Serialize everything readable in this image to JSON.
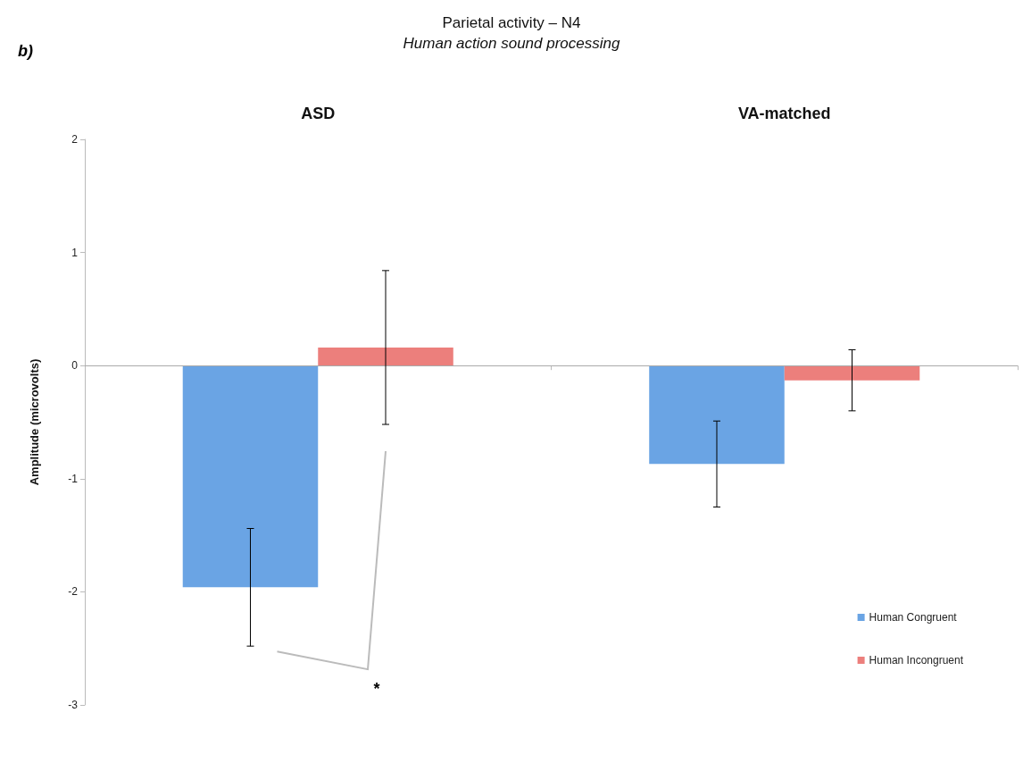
{
  "chart_data": {
    "type": "bar",
    "title": "Parietal activity – N4",
    "subtitle": "Human action sound processing",
    "ylabel": "Amplitude (microvolts)",
    "categories": [
      "ASD",
      "VA-matched"
    ],
    "series": [
      {
        "name": "Human Congruent",
        "color": "#6aa4e4",
        "values": [
          -1.96,
          -0.87
        ],
        "errors": [
          0.52,
          0.38
        ]
      },
      {
        "name": "Human Incongruent",
        "color": "#ec7f7c",
        "values": [
          0.16,
          -0.13
        ],
        "errors": [
          0.68,
          0.27
        ]
      }
    ],
    "ref_lines": [
      {
        "axis": "y",
        "value": 0,
        "color": "#aaaaaa"
      }
    ],
    "ylim": [
      -3,
      2
    ],
    "yticks": [
      -3,
      -2,
      -1,
      0,
      1,
      2
    ],
    "grid": false,
    "legend": "bottom right",
    "annotations": [
      "b)",
      "*"
    ]
  }
}
